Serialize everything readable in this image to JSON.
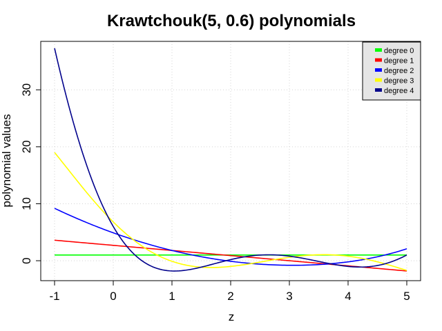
{
  "chart_data": {
    "type": "line",
    "title": "Krawtchouk(5, 0.6) polynomials",
    "xlabel": "z",
    "ylabel": "polynomial values",
    "xlim": [
      -1,
      5
    ],
    "ylim": [
      -3.5,
      38.5
    ],
    "xticks": [
      -1,
      0,
      1,
      2,
      3,
      4,
      5
    ],
    "yticks": [
      0,
      10,
      20,
      30
    ],
    "grid": true,
    "legend_position": "top-right",
    "series": [
      {
        "name": "degree 0",
        "color": "#00ff00",
        "x": [
          -1,
          0,
          1,
          2,
          3,
          4,
          5
        ],
        "y": [
          1,
          1,
          1,
          1,
          1,
          1,
          1
        ]
      },
      {
        "name": "degree 1",
        "color": "#ff0000",
        "x": [
          -1,
          0,
          1,
          2,
          3,
          4,
          5
        ],
        "y": [
          3.6,
          2.7,
          1.8,
          0.9,
          0.0,
          -0.9,
          -1.8
        ]
      },
      {
        "name": "degree 2",
        "color": "#0000ff",
        "x": [
          -1,
          0,
          1,
          2,
          3,
          4,
          5
        ],
        "y": [
          9.2,
          4.9,
          1.8,
          -0.1,
          -0.8,
          -0.2,
          2.1
        ]
      },
      {
        "name": "degree 3",
        "color": "#ffff00",
        "x": [
          -1,
          0,
          1,
          2,
          3,
          4,
          5
        ],
        "y": [
          19.0,
          6.8,
          -0.1,
          -1.0,
          0.6,
          0.8,
          -1.7
        ]
      },
      {
        "name": "degree 4",
        "color": "#00008b",
        "x": [
          -1,
          0,
          1,
          2,
          3,
          4,
          5
        ],
        "y": [
          37.3,
          6.0,
          -1.8,
          0.2,
          0.8,
          -1.0,
          1.0
        ]
      }
    ]
  }
}
